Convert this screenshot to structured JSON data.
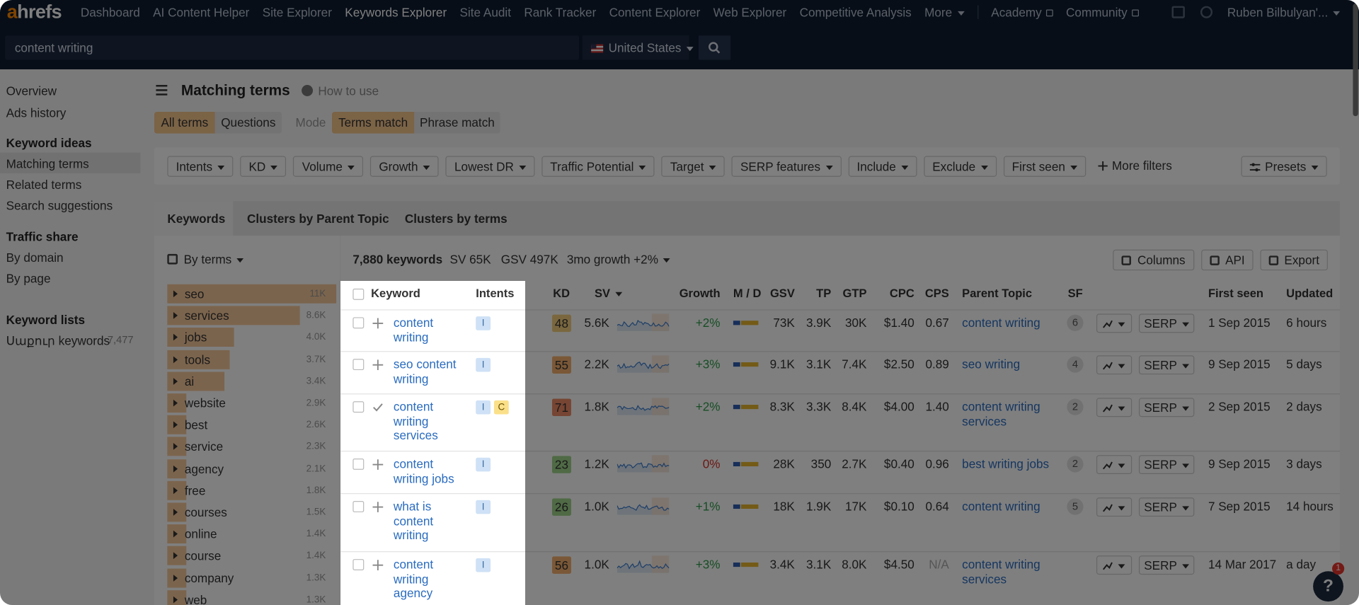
{
  "nav": {
    "logo": "ahrefs",
    "items": [
      "Dashboard",
      "AI Content Helper",
      "Site Explorer",
      "Keywords Explorer",
      "Site Audit",
      "Rank Tracker",
      "Content Explorer",
      "Web Explorer",
      "Competitive Analysis",
      "More"
    ],
    "links": [
      "Academy",
      "Community"
    ],
    "account": "Ruben Bilbulyan'..."
  },
  "search": {
    "query": "content writing",
    "country": "United States"
  },
  "sidebar": {
    "top": [
      "Overview",
      "Ads history"
    ],
    "groups": [
      {
        "title": "Keyword ideas",
        "items": [
          "Matching terms",
          "Related terms",
          "Search suggestions"
        ]
      },
      {
        "title": "Traffic share",
        "items": [
          "By domain",
          "By page"
        ]
      },
      {
        "title": "Keyword lists",
        "items": [
          "Սաքուր keywords"
        ],
        "count": "7,477"
      }
    ]
  },
  "header": {
    "title": "Matching terms",
    "help": "How to use"
  },
  "modes": {
    "terms": [
      "All terms",
      "Questions"
    ],
    "label": "Mode",
    "match": [
      "Terms match",
      "Phrase match"
    ]
  },
  "filters": {
    "items": [
      "Intents",
      "KD",
      "Volume",
      "Growth",
      "Lowest DR",
      "Traffic Potential",
      "Target",
      "SERP features",
      "Include",
      "Exclude",
      "First seen"
    ],
    "more": "More filters",
    "presets": "Presets"
  },
  "tabs": [
    "Keywords",
    "Clusters by Parent Topic",
    "Clusters by terms"
  ],
  "terms_panel": {
    "title": "By terms",
    "terms": [
      {
        "term": "seo",
        "count": "11K"
      },
      {
        "term": "services",
        "count": "8.6K"
      },
      {
        "term": "jobs",
        "count": "4.0K"
      },
      {
        "term": "tools",
        "count": "3.7K"
      },
      {
        "term": "ai",
        "count": "3.4K"
      },
      {
        "term": "website",
        "count": "2.9K"
      },
      {
        "term": "best",
        "count": "2.6K"
      },
      {
        "term": "service",
        "count": "2.3K"
      },
      {
        "term": "agency",
        "count": "2.1K"
      },
      {
        "term": "free",
        "count": "1.8K"
      },
      {
        "term": "courses",
        "count": "1.5K"
      },
      {
        "term": "online",
        "count": "1.4K"
      },
      {
        "term": "course",
        "count": "1.4K"
      },
      {
        "term": "company",
        "count": "1.3K"
      },
      {
        "term": "web",
        "count": "1.3K"
      }
    ]
  },
  "summary": {
    "keywords": "7,880 keywords",
    "sv": "SV 65K",
    "gsv": "GSV 497K",
    "growth": "3mo growth +2%",
    "buttons": [
      "Columns",
      "API",
      "Export"
    ]
  },
  "table": {
    "columns": [
      "Keyword",
      "Intents",
      "KD",
      "SV",
      "Growth",
      "M / D",
      "GSV",
      "TP",
      "GTP",
      "CPC",
      "CPS",
      "Parent Topic",
      "SF",
      "First seen",
      "Updated"
    ],
    "rows": [
      {
        "keyword": "content writing",
        "intents": [
          "I"
        ],
        "kd": 48,
        "sv": "5.6K",
        "growth": "+2%",
        "gsv": "73K",
        "tp": "3.9K",
        "gtp": "30K",
        "cpc": "$1.40",
        "cps": "0.67",
        "parent_topic": "content writing",
        "sf": 6,
        "serp": "SERP",
        "first_seen": "1 Sep 2015",
        "updated": "6 hours"
      },
      {
        "keyword": "seo content writing",
        "intents": [
          "I"
        ],
        "kd": 55,
        "sv": "2.2K",
        "growth": "+3%",
        "gsv": "9.1K",
        "tp": "3.1K",
        "gtp": "7.4K",
        "cpc": "$2.50",
        "cps": "0.89",
        "parent_topic": "seo writing",
        "sf": 4,
        "serp": "SERP",
        "first_seen": "9 Sep 2015",
        "updated": "5 days"
      },
      {
        "keyword": "content writing services",
        "intents": [
          "I",
          "C"
        ],
        "kd": 71,
        "sv": "1.8K",
        "growth": "+2%",
        "gsv": "8.3K",
        "tp": "3.3K",
        "gtp": "8.4K",
        "cpc": "$4.00",
        "cps": "1.40",
        "parent_topic": "content writing services",
        "sf": 2,
        "serp": "SERP",
        "first_seen": "2 Sep 2015",
        "updated": "2 days"
      },
      {
        "keyword": "content writing jobs",
        "intents": [
          "I"
        ],
        "kd": 23,
        "sv": "1.2K",
        "growth": "0%",
        "gsv": "28K",
        "tp": "350",
        "gtp": "2.7K",
        "cpc": "$0.40",
        "cps": "0.96",
        "parent_topic": "best writing jobs",
        "sf": 2,
        "serp": "SERP",
        "first_seen": "9 Sep 2015",
        "updated": "3 days"
      },
      {
        "keyword": "what is content writing",
        "intents": [
          "I"
        ],
        "kd": 26,
        "sv": "1.0K",
        "growth": "+1%",
        "gsv": "18K",
        "tp": "1.9K",
        "gtp": "17K",
        "cpc": "$0.10",
        "cps": "0.64",
        "parent_topic": "content writing",
        "sf": 5,
        "serp": "SERP",
        "first_seen": "7 Sep 2015",
        "updated": "14 hours"
      },
      {
        "keyword": "content writing agency",
        "intents": [
          "I"
        ],
        "kd": 56,
        "sv": "1.0K",
        "growth": "+3%",
        "gsv": "3.4K",
        "tp": "3.1K",
        "gtp": "8.0K",
        "cpc": "$4.50",
        "cps": "N/A",
        "parent_topic": "content writing services",
        "serp": "SERP",
        "first_seen": "14 Mar 2017",
        "updated": "a day"
      }
    ]
  },
  "help": {
    "label": "?",
    "badge": "1"
  }
}
